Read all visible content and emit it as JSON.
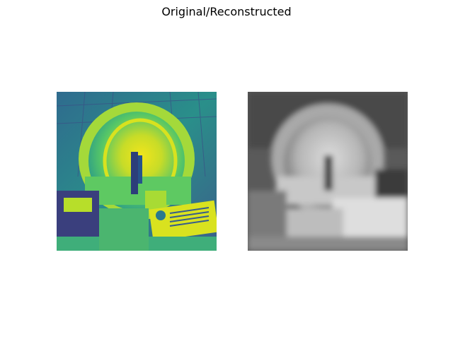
{
  "figure": {
    "suptitle": "Original/Reconstructed"
  },
  "panels": [
    {
      "name": "original-image",
      "colormap": "viridis",
      "content": "heatmap rendering of a curved arch sculpture with display signs"
    },
    {
      "name": "reconstructed-image",
      "colormap": "gray",
      "content": "blurred grayscale reconstruction of the same scene"
    }
  ],
  "colors": {
    "viridis_dark": "#3b1e6b",
    "viridis_teal": "#2a7f8e",
    "viridis_green": "#3fb878",
    "viridis_yellow": "#e9e51b",
    "gray_dark": "#2d2d2d",
    "gray_light": "#e6e6e6"
  }
}
